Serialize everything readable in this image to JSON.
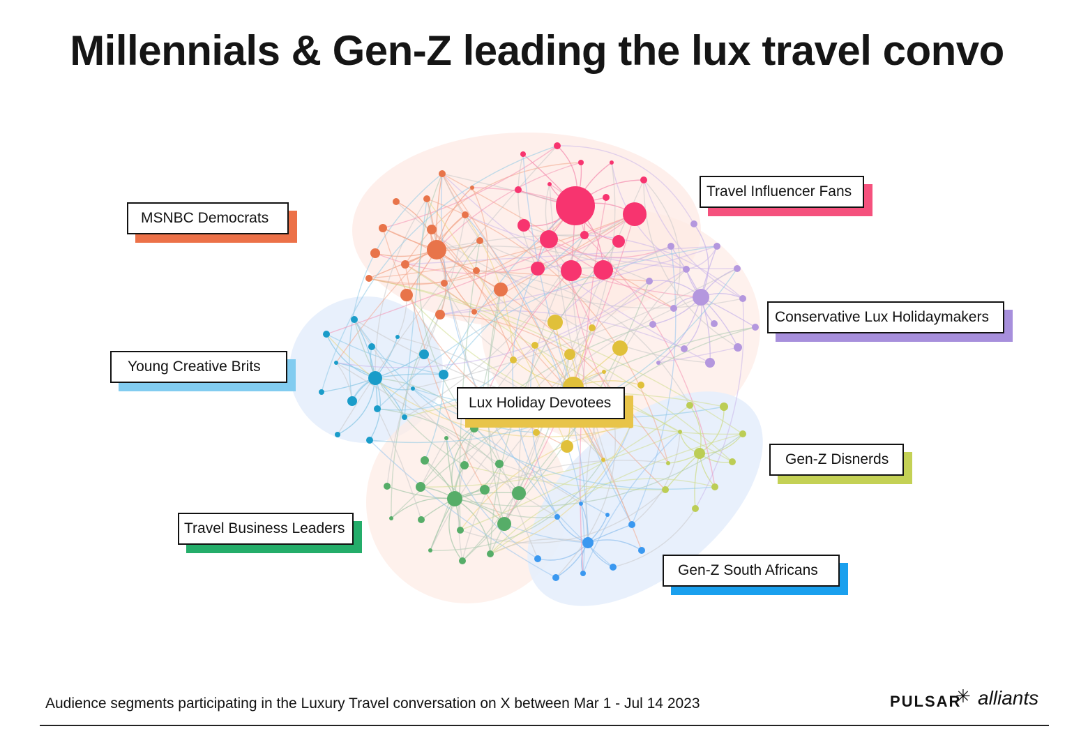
{
  "title": "Millennials & Gen-Z leading the lux travel convo",
  "caption": "Audience segments participating in the Luxury Travel conversation on X between Mar 1 - Jul 14 2023",
  "brand": {
    "pulsar": "PULSAR",
    "alliants": "alliants",
    "mark_icon": "asterisk-circle-icon"
  },
  "segments": [
    {
      "name": "MSNBC Democrats",
      "color": "#ec7148"
    },
    {
      "name": "Travel Influencer Fans",
      "color": "#f5517d"
    },
    {
      "name": "Conservative Lux Holidaymakers",
      "color": "#a78fdc"
    },
    {
      "name": "Young Creative Brits",
      "color": "#82ccf0"
    },
    {
      "name": "Lux Holiday Devotees",
      "color": "#e8c449"
    },
    {
      "name": "Gen-Z Disnerds",
      "color": "#c4d155"
    },
    {
      "name": "Travel Business Leaders",
      "color": "#24ad6a"
    },
    {
      "name": "Gen-Z South Africans",
      "color": "#1aa0ee"
    }
  ]
}
